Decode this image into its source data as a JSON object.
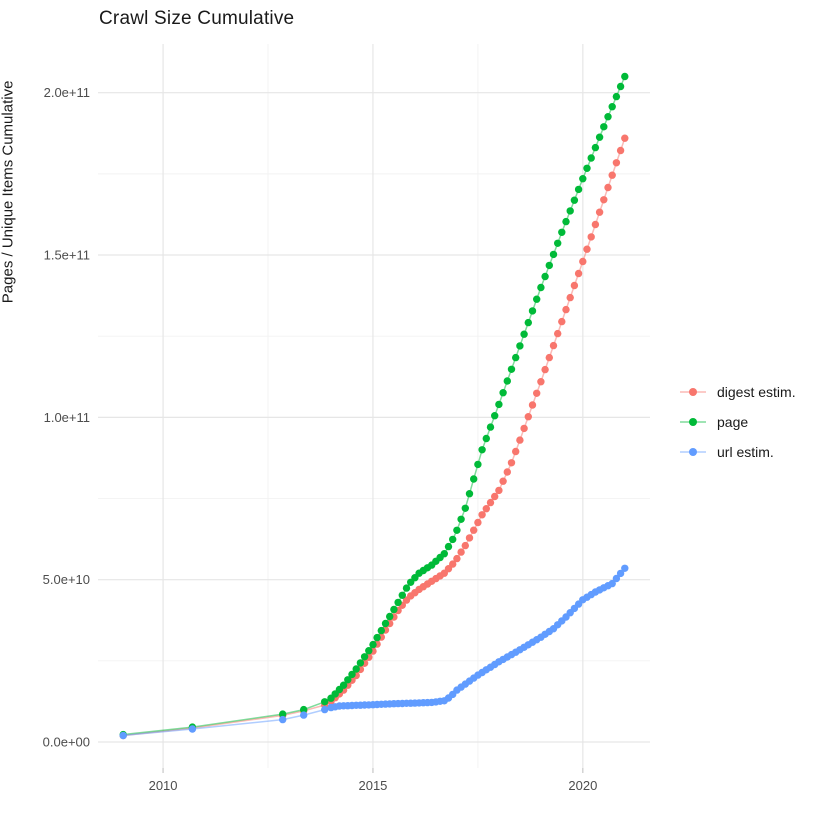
{
  "chart_data": {
    "type": "scatter",
    "title": "Crawl Size Cumulative",
    "xlabel": "",
    "ylabel": "Pages / Unique Items Cumulative",
    "value_unit": "pages (values below are in billions, 1 = 1e9)",
    "grid": "on",
    "legend_position": "right",
    "xlim": [
      2008.45,
      2021.6
    ],
    "ylim_e9": [
      -8,
      215
    ],
    "x_ticks": [
      {
        "value": 2010,
        "label": "2010"
      },
      {
        "value": 2015,
        "label": "2015"
      },
      {
        "value": 2020,
        "label": "2020"
      }
    ],
    "y_ticks": [
      {
        "value_e9": 0,
        "label": "0.0e+00"
      },
      {
        "value_e9": 50,
        "label": "5.0e+10"
      },
      {
        "value_e9": 100,
        "label": "1.0e+11"
      },
      {
        "value_e9": 150,
        "label": "1.5e+11"
      },
      {
        "value_e9": 200,
        "label": "2.0e+11"
      }
    ],
    "x_minor_gridlines": [
      2012.5,
      2017.5
    ],
    "y_minor_gridlines_e9": [
      25,
      75,
      125,
      175
    ],
    "colors": {
      "grid_major": "#e6e6e6",
      "grid_minor": "#f2f2f2",
      "axis_tick": "#c2c2c2",
      "tick_text": "#4d4d4d",
      "title_text": "#1a1a1a"
    },
    "series": [
      {
        "name": "digest estim.",
        "color": "#F8766D",
        "points_unit": "[year, cumulative_items_e9]",
        "sparse_points": [
          [
            2009.05,
            2.0
          ],
          [
            2010.7,
            4.3
          ],
          [
            2012.85,
            8.2
          ],
          [
            2013.35,
            9.6
          ],
          [
            2013.85,
            11.4
          ]
        ],
        "keyframes": [
          [
            2014.0,
            12.5
          ],
          [
            2014.3,
            16.0
          ],
          [
            2014.6,
            20.5
          ],
          [
            2015.0,
            28.0
          ],
          [
            2015.3,
            34.5
          ],
          [
            2015.6,
            40.5
          ],
          [
            2015.85,
            44.5
          ],
          [
            2016.1,
            47.0
          ],
          [
            2016.4,
            49.5
          ],
          [
            2016.7,
            52.0
          ],
          [
            2016.95,
            55.5
          ],
          [
            2017.2,
            60.5
          ],
          [
            2017.6,
            70.0
          ],
          [
            2018.0,
            77.5
          ],
          [
            2018.3,
            86.0
          ],
          [
            2018.5,
            93.0
          ],
          [
            2019.0,
            111.0
          ],
          [
            2019.5,
            129.5
          ],
          [
            2020.0,
            148.0
          ],
          [
            2020.5,
            167.0
          ],
          [
            2021.0,
            186.0
          ]
        ],
        "dense_from": 2014.0,
        "dense_step_years": 0.1
      },
      {
        "name": "page",
        "color": "#00BA38",
        "points_unit": "[year, cumulative_items_e9]",
        "sparse_points": [
          [
            2009.05,
            2.3
          ],
          [
            2010.7,
            4.6
          ],
          [
            2012.85,
            8.6
          ],
          [
            2013.35,
            10.0
          ],
          [
            2013.85,
            12.4
          ]
        ],
        "keyframes": [
          [
            2014.0,
            13.5
          ],
          [
            2014.3,
            17.5
          ],
          [
            2014.6,
            22.5
          ],
          [
            2015.0,
            30.0
          ],
          [
            2015.3,
            36.5
          ],
          [
            2015.6,
            43.0
          ],
          [
            2015.85,
            48.5
          ],
          [
            2016.1,
            52.0
          ],
          [
            2016.4,
            54.5
          ],
          [
            2016.7,
            58.0
          ],
          [
            2016.95,
            63.5
          ],
          [
            2017.2,
            72.0
          ],
          [
            2017.6,
            90.0
          ],
          [
            2018.0,
            104.0
          ],
          [
            2018.5,
            122.0
          ],
          [
            2019.0,
            140.0
          ],
          [
            2019.5,
            157.0
          ],
          [
            2020.0,
            173.5
          ],
          [
            2020.5,
            189.5
          ],
          [
            2021.0,
            205.0
          ]
        ],
        "dense_from": 2014.0,
        "dense_step_years": 0.1
      },
      {
        "name": "url estim.",
        "color": "#619CFF",
        "points_unit": "[year, cumulative_items_e9]",
        "sparse_points": [
          [
            2009.05,
            2.0
          ],
          [
            2010.7,
            4.0
          ],
          [
            2012.85,
            6.9
          ],
          [
            2013.35,
            8.3
          ],
          [
            2013.85,
            10.0
          ]
        ],
        "keyframes": [
          [
            2014.0,
            10.6
          ],
          [
            2014.2,
            11.1
          ],
          [
            2014.6,
            11.3
          ],
          [
            2015.0,
            11.5
          ],
          [
            2015.5,
            11.8
          ],
          [
            2016.0,
            12.0
          ],
          [
            2016.4,
            12.2
          ],
          [
            2016.7,
            12.7
          ],
          [
            2016.85,
            14.0
          ],
          [
            2017.0,
            16.0
          ],
          [
            2017.5,
            20.6
          ],
          [
            2018.0,
            24.7
          ],
          [
            2018.5,
            28.4
          ],
          [
            2019.0,
            32.3
          ],
          [
            2019.3,
            34.9
          ],
          [
            2019.6,
            38.5
          ],
          [
            2020.0,
            43.8
          ],
          [
            2020.3,
            46.2
          ],
          [
            2020.7,
            48.8
          ],
          [
            2021.0,
            53.5
          ]
        ],
        "dense_from": 2014.0,
        "dense_step_years": 0.1
      }
    ],
    "legend": [
      "digest estim.",
      "page",
      "url estim."
    ],
    "style": {
      "point_radius": 3.7,
      "line_width": 1.5,
      "line_opacity": 0.5
    }
  }
}
